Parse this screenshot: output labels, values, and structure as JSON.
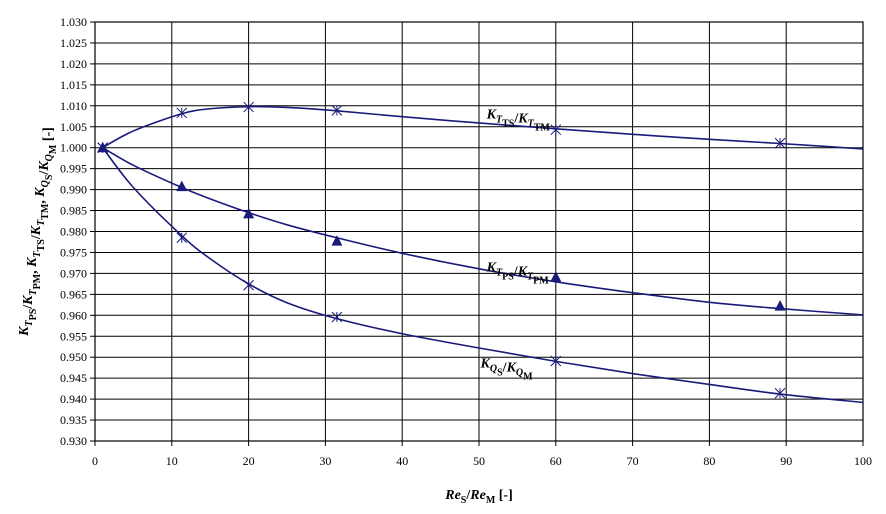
{
  "chart_data": {
    "type": "line",
    "xlabel_parts": [
      {
        "text": "Re",
        "style": "i"
      },
      {
        "text": "S",
        "style": "sub"
      },
      {
        "text": "/",
        "style": "n"
      },
      {
        "text": "Re",
        "style": "i"
      },
      {
        "text": "M",
        "style": "sub"
      },
      {
        "text": " [-]",
        "style": "n"
      }
    ],
    "ylabel_parts": [
      {
        "text": "K",
        "style": "i"
      },
      {
        "text": "T",
        "style": "subi"
      },
      {
        "text": "PS",
        "style": "sub"
      },
      {
        "text": "/",
        "style": "n"
      },
      {
        "text": "K",
        "style": "i"
      },
      {
        "text": "T",
        "style": "subi"
      },
      {
        "text": "PM",
        "style": "sub"
      },
      {
        "text": ", ",
        "style": "n"
      },
      {
        "text": "K",
        "style": "i"
      },
      {
        "text": "T",
        "style": "subi"
      },
      {
        "text": "TS",
        "style": "sub"
      },
      {
        "text": "/",
        "style": "n"
      },
      {
        "text": "K",
        "style": "i"
      },
      {
        "text": "T",
        "style": "subi"
      },
      {
        "text": "TM",
        "style": "sub"
      },
      {
        "text": ", ",
        "style": "n"
      },
      {
        "text": "K",
        "style": "i"
      },
      {
        "text": "Q",
        "style": "subi"
      },
      {
        "text": "S",
        "style": "sub"
      },
      {
        "text": "/",
        "style": "n"
      },
      {
        "text": "K",
        "style": "i"
      },
      {
        "text": "Q",
        "style": "subi"
      },
      {
        "text": "M",
        "style": "sub"
      },
      {
        "text": " [-]",
        "style": "n"
      }
    ],
    "xlim": [
      0,
      100
    ],
    "ylim": [
      0.93,
      1.03
    ],
    "x_ticks": [
      "0",
      "10",
      "20",
      "30",
      "40",
      "50",
      "60",
      "70",
      "80",
      "90",
      "100"
    ],
    "y_ticks": [
      "0.930",
      "0.935",
      "0.940",
      "0.945",
      "0.950",
      "0.955",
      "0.960",
      "0.965",
      "0.970",
      "0.975",
      "0.980",
      "0.985",
      "0.990",
      "0.995",
      "1.000",
      "1.005",
      "1.010",
      "1.015",
      "1.020",
      "1.025",
      "1.030"
    ],
    "grid": true,
    "line_color": "#1a1a7a",
    "marker_color": "#1a1a7a",
    "series": [
      {
        "id": "tts",
        "label_parts": [
          {
            "text": "K",
            "style": "i"
          },
          {
            "text": "T",
            "style": "subi"
          },
          {
            "text": "TS",
            "style": "sub"
          },
          {
            "text": "/",
            "style": "n"
          },
          {
            "text": "K",
            "style": "i"
          },
          {
            "text": "T",
            "style": "subi"
          },
          {
            "text": "TM",
            "style": "sub"
          }
        ],
        "label_pos": [
          51,
          1.007
        ],
        "marker": "x",
        "points": [
          [
            1,
            1.0
          ],
          [
            11.3,
            1.0083
          ],
          [
            20,
            1.0097
          ],
          [
            31.5,
            1.0089
          ],
          [
            60,
            1.0043
          ],
          [
            89.2,
            1.0011
          ]
        ],
        "curve": [
          [
            1,
            1.0
          ],
          [
            5,
            1.004
          ],
          [
            11.3,
            1.0081
          ],
          [
            15,
            1.0093
          ],
          [
            20,
            1.0098
          ],
          [
            25,
            1.0096
          ],
          [
            31.5,
            1.0088
          ],
          [
            40,
            1.0074
          ],
          [
            50,
            1.0059
          ],
          [
            60,
            1.0045
          ],
          [
            70,
            1.0032
          ],
          [
            80,
            1.002
          ],
          [
            89.2,
            1.001
          ],
          [
            100,
            0.9997
          ]
        ]
      },
      {
        "id": "tps",
        "label_parts": [
          {
            "text": "K",
            "style": "i"
          },
          {
            "text": "T",
            "style": "subi"
          },
          {
            "text": "PS",
            "style": "sub"
          },
          {
            "text": "/",
            "style": "n"
          },
          {
            "text": "K",
            "style": "i"
          },
          {
            "text": "T",
            "style": "subi"
          },
          {
            "text": "PM",
            "style": "sub"
          }
        ],
        "label_pos": [
          51,
          0.9705
        ],
        "marker": "triangle",
        "points": [
          [
            1,
            1.0
          ],
          [
            11.3,
            0.9907
          ],
          [
            20,
            0.9842
          ],
          [
            31.5,
            0.9777
          ],
          [
            60,
            0.9691
          ],
          [
            89.2,
            0.9622
          ]
        ],
        "curve": [
          [
            1,
            1.0
          ],
          [
            5,
            0.9958
          ],
          [
            11.3,
            0.9905
          ],
          [
            15,
            0.9878
          ],
          [
            20,
            0.9845
          ],
          [
            25,
            0.9816
          ],
          [
            31.5,
            0.9785
          ],
          [
            40,
            0.9748
          ],
          [
            50,
            0.9711
          ],
          [
            60,
            0.968
          ],
          [
            70,
            0.9654
          ],
          [
            80,
            0.9631
          ],
          [
            89.2,
            0.9616
          ],
          [
            100,
            0.9601
          ]
        ]
      },
      {
        "id": "qs",
        "label_parts": [
          {
            "text": "K",
            "style": "i"
          },
          {
            "text": "Q",
            "style": "subi"
          },
          {
            "text": "S",
            "style": "sub"
          },
          {
            "text": "/",
            "style": "n"
          },
          {
            "text": "K",
            "style": "i"
          },
          {
            "text": "Q",
            "style": "subi"
          },
          {
            "text": "M",
            "style": "sub"
          }
        ],
        "label_pos": [
          50.2,
          0.9475
        ],
        "marker": "x",
        "points": [
          [
            1,
            1.0
          ],
          [
            11.3,
            0.9785
          ],
          [
            20,
            0.9672
          ],
          [
            31.5,
            0.9596
          ],
          [
            60,
            0.9491
          ],
          [
            89.2,
            0.9414
          ]
        ],
        "curve": [
          [
            1,
            1.0
          ],
          [
            5,
            0.9905
          ],
          [
            11.3,
            0.979
          ],
          [
            15,
            0.9735
          ],
          [
            20,
            0.9675
          ],
          [
            25,
            0.963
          ],
          [
            31.5,
            0.9592
          ],
          [
            40,
            0.9556
          ],
          [
            50,
            0.9522
          ],
          [
            60,
            0.949
          ],
          [
            70,
            0.9461
          ],
          [
            80,
            0.9435
          ],
          [
            89.2,
            0.9412
          ],
          [
            100,
            0.9392
          ]
        ]
      }
    ]
  }
}
